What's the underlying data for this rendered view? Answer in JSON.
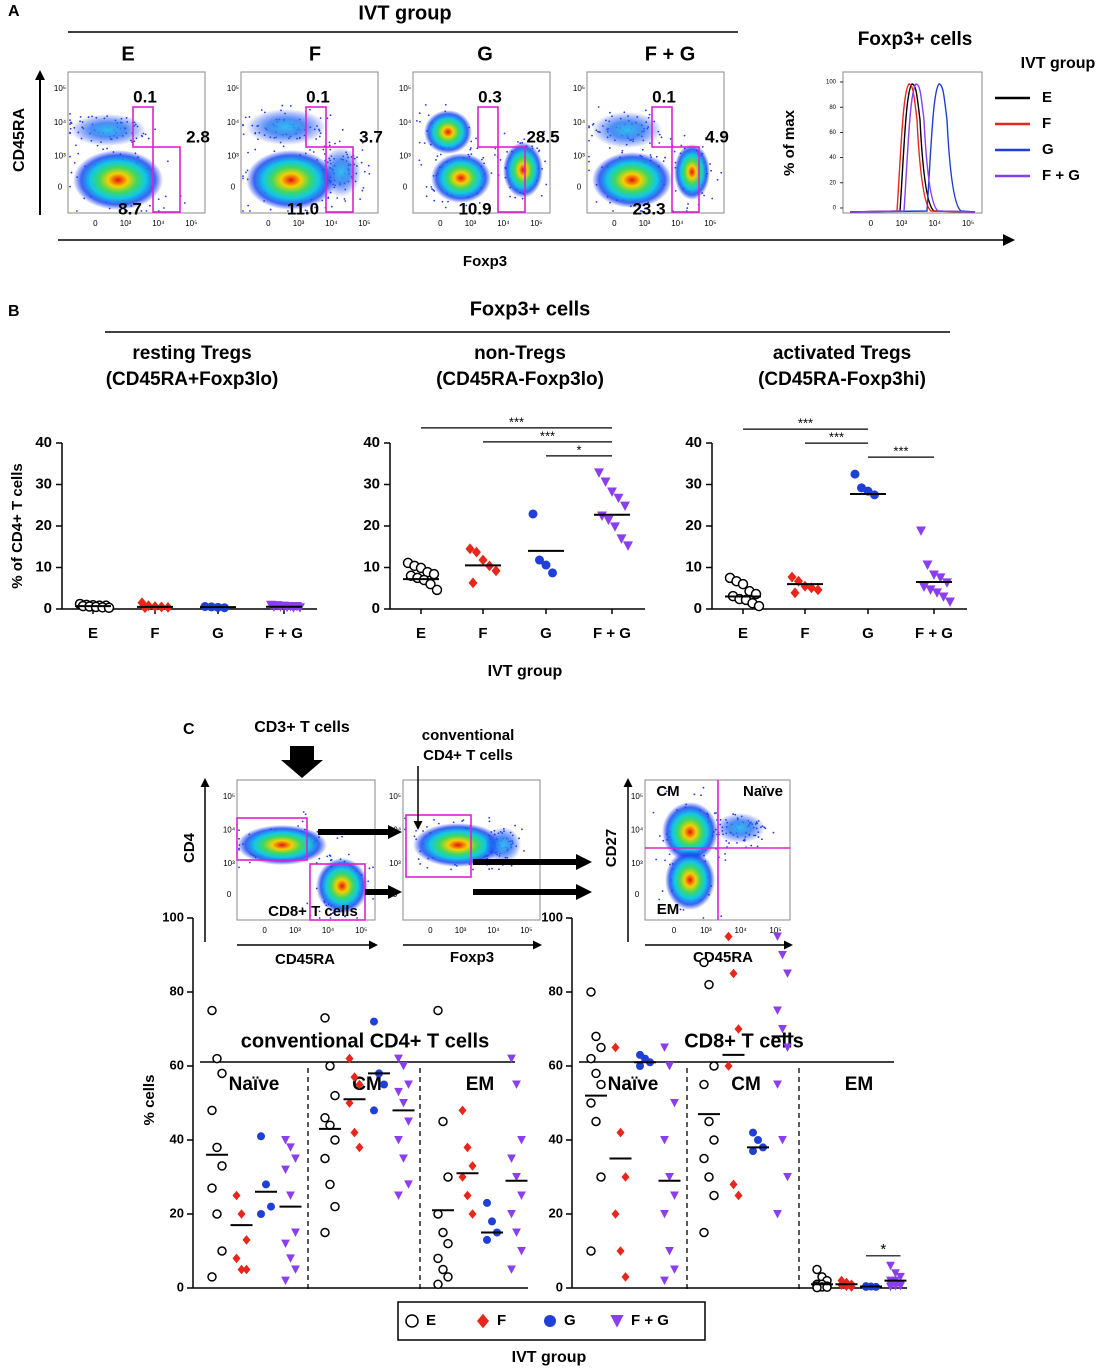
{
  "panel_a": {
    "label": "A",
    "title": "IVT group",
    "ylabel": "CD45RA",
    "xlabel": "Foxp3",
    "axis_ticks": [
      "0",
      "10³",
      "10⁴",
      "10⁵"
    ],
    "plots": [
      {
        "name": "E",
        "gates": [
          "0.1",
          "2.8",
          "8.7"
        ]
      },
      {
        "name": "F",
        "gates": [
          "0.1",
          "3.7",
          "11.0"
        ]
      },
      {
        "name": "G",
        "gates": [
          "0.3",
          "28.5",
          "10.9"
        ]
      },
      {
        "name": "F + G",
        "gates": [
          "0.1",
          "4.9",
          "23.3"
        ]
      }
    ],
    "histogram": {
      "title": "Foxp3+ cells",
      "ylabel": "% of max",
      "legend_title": "IVT group",
      "yticks": [
        0,
        20,
        40,
        60,
        80,
        100
      ],
      "series": [
        {
          "name": "E",
          "color": "#000000"
        },
        {
          "name": "F",
          "color": "#e8261c"
        },
        {
          "name": "G",
          "color": "#1f3fd6"
        },
        {
          "name": "F + G",
          "color": "#8a3ef0"
        }
      ]
    }
  },
  "panel_b": {
    "label": "B",
    "title": "Foxp3+ cells"
  },
  "panel_c": {
    "label": "C",
    "start": "CD3+ T cells",
    "conventional": [
      "conventional",
      "CD4+ T cells"
    ],
    "cd8": "CD8+ T cells",
    "plot1_x": "CD45RA",
    "plot1_y": "CD4",
    "plot2_x": "Foxp3",
    "plot3_x": "CD45RA",
    "plot3_y": "CD27",
    "quadrants": [
      "CM",
      "Naïve",
      "EM"
    ]
  },
  "chart_data": [
    {
      "type": "strip",
      "title": "resting Tregs",
      "subtitle": "(CD45RA+Foxp3lo)",
      "ylabel": "% of CD4+ T cells",
      "categories": [
        "E",
        "F",
        "G",
        "F + G"
      ],
      "markers": [
        "circle-open",
        "diamond",
        "circle",
        "triangle-down"
      ],
      "colors": [
        "#000000",
        "#e8261c",
        "#1f3fd6",
        "#8a3ef0"
      ],
      "values": [
        [
          1.2,
          1.0,
          0.9,
          0.8,
          0.8,
          0.7,
          0.6,
          0.5,
          0.4,
          0.3
        ],
        [
          1.5,
          0.8,
          0.6,
          0.5,
          0.4,
          0.3
        ],
        [
          0.6,
          0.5,
          0.4,
          0.3
        ],
        [
          0.9,
          0.8,
          0.7,
          0.6,
          0.6,
          0.5,
          0.5,
          0.4,
          0.3,
          0.3
        ]
      ],
      "medians": [
        0.7,
        0.5,
        0.45,
        0.55
      ],
      "ylim": [
        0,
        40
      ],
      "yticks": [
        0,
        10,
        20,
        30,
        40
      ]
    },
    {
      "type": "strip",
      "title": "non-Tregs",
      "subtitle": "(CD45RA-Foxp3lo)",
      "xlabel": "IVT group",
      "categories": [
        "E",
        "F",
        "G",
        "F + G"
      ],
      "markers": [
        "circle-open",
        "diamond",
        "circle",
        "triangle-down"
      ],
      "colors": [
        "#000000",
        "#e8261c",
        "#1f3fd6",
        "#8a3ef0"
      ],
      "values": [
        [
          11.1,
          10.4,
          9.9,
          8.9,
          8.4,
          8.0,
          7.5,
          7.0,
          6.0,
          4.6
        ],
        [
          14.5,
          13.7,
          11.8,
          10.4,
          9.2,
          6.3
        ],
        [
          22.9,
          11.8,
          10.6,
          8.7
        ],
        [
          32.8,
          30.6,
          28.2,
          26.7,
          24.8,
          22.4,
          21.4,
          19.8,
          16.9,
          15.2
        ]
      ],
      "medians": [
        7.2,
        10.5,
        14,
        22.7
      ],
      "ylim": [
        0,
        40
      ],
      "yticks": [
        0,
        10,
        20,
        30,
        40
      ],
      "annotations": [
        {
          "between": [
            "E",
            "F + G"
          ],
          "label": "***"
        },
        {
          "between": [
            "F",
            "F + G"
          ],
          "label": "***"
        },
        {
          "between": [
            "G",
            "F + G"
          ],
          "label": "*"
        }
      ]
    },
    {
      "type": "strip",
      "title": "activated Tregs",
      "subtitle": "(CD45RA-Foxp3hi)",
      "categories": [
        "E",
        "F",
        "G",
        "F + G"
      ],
      "markers": [
        "circle-open",
        "diamond",
        "circle",
        "triangle-down"
      ],
      "colors": [
        "#000000",
        "#e8261c",
        "#1f3fd6",
        "#8a3ef0"
      ],
      "values": [
        [
          7.5,
          6.7,
          6.0,
          4.3,
          3.6,
          3.1,
          2.4,
          2.2,
          1.4,
          0.7
        ],
        [
          7.7,
          6.7,
          5.5,
          5.1,
          4.6,
          3.9
        ],
        [
          32.5,
          29.2,
          28.4,
          27.5
        ],
        [
          18.8,
          10.6,
          8.2,
          7.5,
          6.3,
          5.3,
          4.6,
          3.9,
          2.9,
          1.7
        ]
      ],
      "medians": [
        3,
        6,
        27.7,
        6.5
      ],
      "ylim": [
        0,
        40
      ],
      "yticks": [
        0,
        10,
        20,
        30,
        40
      ],
      "annotations": [
        {
          "between": [
            "E",
            "G"
          ],
          "label": "***"
        },
        {
          "between": [
            "F",
            "G"
          ],
          "label": "***"
        },
        {
          "between": [
            "G",
            "F + G"
          ],
          "label": "***"
        }
      ]
    },
    {
      "type": "grouped-strip",
      "title": "conventional CD4+ T cells",
      "groups": [
        "Naïve",
        "CM",
        "EM"
      ],
      "ylabel": "% cells",
      "ylim": [
        0,
        100
      ],
      "yticks": [
        0,
        20,
        40,
        60,
        80,
        100
      ],
      "series": [
        {
          "name": "E",
          "color": "#000000",
          "marker": "circle-open",
          "values": [
            [
              75,
              62,
              58,
              48,
              38,
              33,
              27,
              20,
              10,
              3
            ],
            [
              73,
              60,
              52,
              46,
              44,
              40,
              35,
              28,
              22,
              15
            ],
            [
              75,
              45,
              30,
              20,
              15,
              12,
              8,
              5,
              3,
              1
            ]
          ],
          "medians": [
            36,
            43,
            21
          ]
        },
        {
          "name": "F",
          "color": "#e8261c",
          "marker": "diamond",
          "values": [
            [
              25,
              20,
              13,
              8,
              5,
              5
            ],
            [
              62,
              57,
              55,
              50,
              42,
              38
            ],
            [
              48,
              38,
              33,
              30,
              25,
              20
            ]
          ],
          "medians": [
            17,
            51,
            31
          ]
        },
        {
          "name": "G",
          "color": "#1f3fd6",
          "marker": "circle",
          "values": [
            [
              41,
              28,
              22,
              20
            ],
            [
              72,
              58,
              55,
              48
            ],
            [
              23,
              18,
              15,
              13
            ]
          ],
          "medians": [
            26,
            58,
            15
          ]
        },
        {
          "name": "F + G",
          "color": "#8a3ef0",
          "marker": "triangle-down",
          "values": [
            [
              40,
              38,
              35,
              32,
              25,
              15,
              12,
              8,
              5,
              2
            ],
            [
              62,
              60,
              55,
              53,
              50,
              45,
              40,
              35,
              28,
              25
            ],
            [
              62,
              55,
              40,
              35,
              30,
              25,
              20,
              15,
              10,
              5
            ]
          ],
          "medians": [
            22,
            48,
            29
          ]
        }
      ]
    },
    {
      "type": "grouped-strip",
      "title": "CD8+ T cells",
      "groups": [
        "Naïve",
        "CM",
        "EM"
      ],
      "xlabel": "IVT group",
      "ylim": [
        0,
        100
      ],
      "yticks": [
        0,
        20,
        40,
        60,
        80,
        100
      ],
      "series": [
        {
          "name": "E",
          "color": "#000000",
          "marker": "circle-open",
          "values": [
            [
              80,
              68,
              65,
              62,
              58,
              55,
              50,
              45,
              30,
              10
            ],
            [
              88,
              82,
              60,
              55,
              45,
              40,
              35,
              30,
              25,
              15
            ],
            [
              5,
              3,
              2,
              1,
              1,
              0.5,
              0.5,
              0.3,
              0.2,
              0.1
            ]
          ],
          "medians": [
            52,
            47,
            1
          ]
        },
        {
          "name": "F",
          "color": "#e8261c",
          "marker": "diamond",
          "values": [
            [
              65,
              42,
              30,
              20,
              10,
              3
            ],
            [
              95,
              85,
              70,
              60,
              28,
              25
            ],
            [
              2,
              1.5,
              1,
              0.8,
              0.5,
              0.3
            ]
          ],
          "medians": [
            35,
            63,
            1
          ]
        },
        {
          "name": "G",
          "color": "#1f3fd6",
          "marker": "circle",
          "values": [
            [
              63,
              62,
              61,
              60
            ],
            [
              42,
              40,
              38,
              37
            ],
            [
              0.5,
              0.4,
              0.3,
              0.3
            ]
          ],
          "medians": [
            61,
            38,
            0.4
          ]
        },
        {
          "name": "F + G",
          "color": "#8a3ef0",
          "marker": "triangle-down",
          "values": [
            [
              65,
              60,
              50,
              40,
              30,
              25,
              20,
              10,
              5,
              2
            ],
            [
              95,
              90,
              85,
              75,
              70,
              65,
              55,
              40,
              30,
              20
            ],
            [
              6,
              4,
              3,
              2,
              2,
              1,
              1,
              0.5,
              0.5,
              0.3
            ]
          ],
          "medians": [
            29,
            68,
            2
          ]
        }
      ],
      "annotations": [
        {
          "group": "EM",
          "between": [
            "G",
            "F + G"
          ],
          "label": "*"
        }
      ]
    }
  ]
}
